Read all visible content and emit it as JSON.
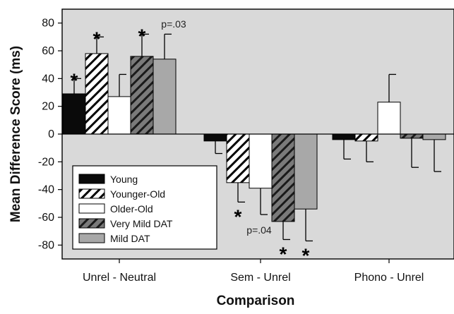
{
  "chart_data": {
    "type": "bar",
    "xlabel": "Comparison",
    "ylabel": "Mean Difference Score (ms)",
    "ylim": [
      -90,
      90
    ],
    "yticks": [
      80,
      60,
      40,
      20,
      0,
      -20,
      -40,
      -60,
      -80
    ],
    "categories": [
      "Unrel - Neutral",
      "Sem - Unrel",
      "Phono - Unrel"
    ],
    "series": [
      {
        "name": "Young",
        "values": [
          29,
          -5,
          -4
        ],
        "errors": [
          11,
          9,
          14
        ],
        "style": "solid",
        "color": "#0a0a0a"
      },
      {
        "name": "Younger-Old",
        "values": [
          58,
          -35,
          -5
        ],
        "errors": [
          12,
          14,
          15
        ],
        "style": "hatch",
        "color": "#ffffff"
      },
      {
        "name": "Older-Old",
        "values": [
          27,
          -39,
          23
        ],
        "errors": [
          16,
          19,
          20
        ],
        "style": "solid",
        "color": "#ffffff"
      },
      {
        "name": "Very Mild DAT",
        "values": [
          56,
          -63,
          -3
        ],
        "errors": [
          16,
          13,
          21
        ],
        "style": "hatch-dark",
        "color": "#666666"
      },
      {
        "name": "Mild DAT",
        "values": [
          54,
          -54,
          -4
        ],
        "errors": [
          18,
          23,
          23
        ],
        "style": "solid",
        "color": "#a8a8a8"
      }
    ],
    "legend_position": "bottom-left",
    "grid": false,
    "background": "#d9d9d9",
    "annotations": [
      {
        "category": 0,
        "series": 0,
        "text": "*"
      },
      {
        "category": 0,
        "series": 1,
        "text": "*"
      },
      {
        "category": 0,
        "series": 3,
        "text": "*"
      },
      {
        "category": 0,
        "series": 4,
        "text": "p=.03"
      },
      {
        "category": 1,
        "series": 1,
        "text": "*"
      },
      {
        "category": 1,
        "series": 3,
        "text": "p=.04"
      },
      {
        "category": 1,
        "series": 3,
        "text": "*"
      },
      {
        "category": 1,
        "series": 4,
        "text": "*"
      }
    ]
  }
}
